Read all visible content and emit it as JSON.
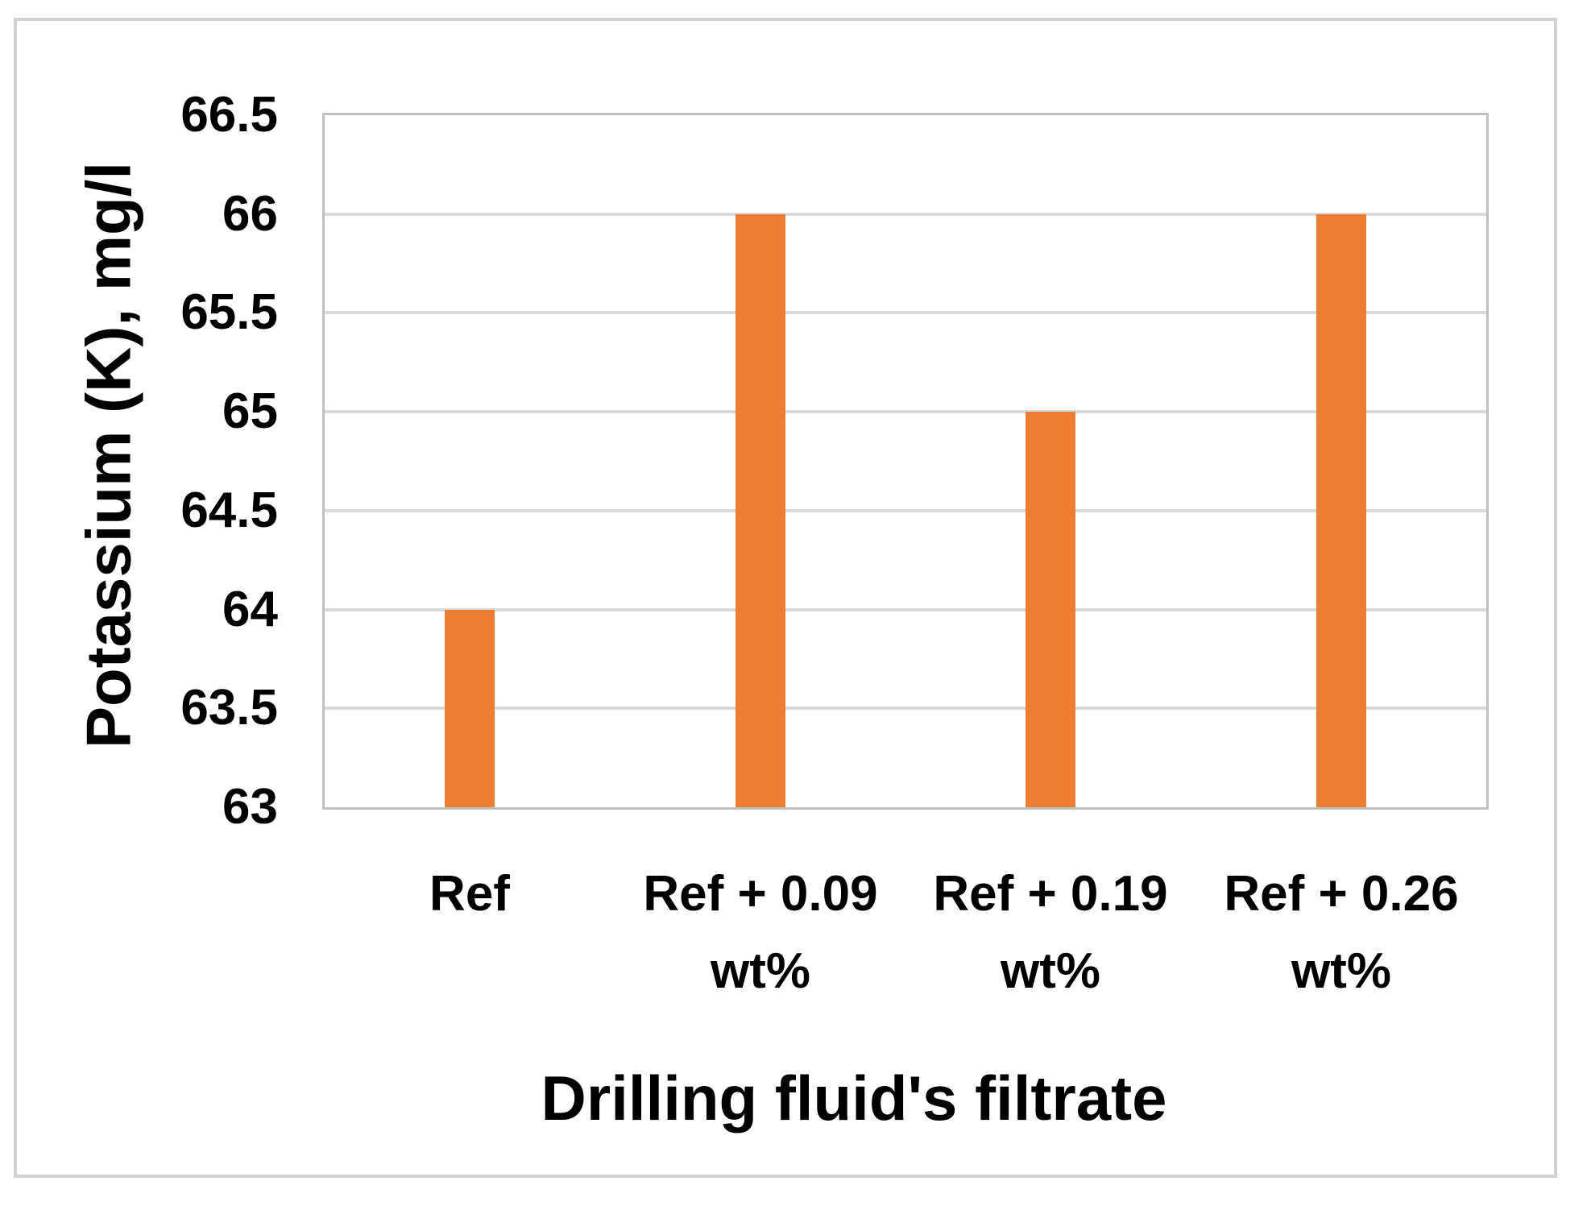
{
  "chart_data": {
    "type": "bar",
    "title": "",
    "xlabel": "Drilling fluid's filtrate",
    "ylabel": "Potassium (K), mg/l",
    "categories": [
      "Ref",
      "Ref + 0.09 wt%",
      "Ref + 0.19 wt%",
      "Ref + 0.26 wt%"
    ],
    "category_lines": [
      [
        "Ref"
      ],
      [
        "Ref + 0.09",
        "wt%"
      ],
      [
        "Ref + 0.19",
        "wt%"
      ],
      [
        "Ref + 0.26",
        "wt%"
      ]
    ],
    "values": [
      64,
      66,
      65,
      66
    ],
    "ylim": [
      63,
      66.5
    ],
    "yticks": [
      66.5,
      66,
      65.5,
      65,
      64.5,
      64,
      63.5,
      63
    ],
    "grid": true,
    "legend_position": "none",
    "bar_color": "#ED7D31",
    "gridline_color": "#D9D9D9",
    "axis_line_color": "#BFBFBF",
    "frame_border_color": "#D2D2D2",
    "text_color": "#000000",
    "background_color": "#FFFFFF"
  }
}
